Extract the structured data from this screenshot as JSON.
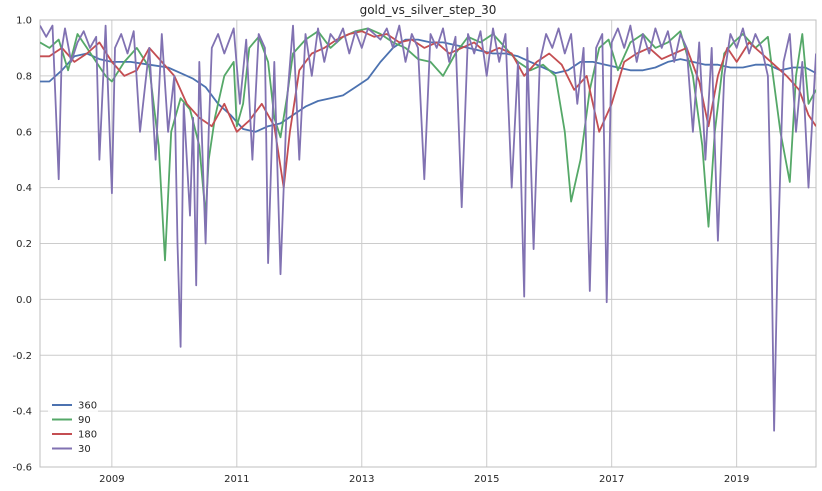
{
  "chart_data": {
    "type": "line",
    "title": "gold_vs_silver_step_30",
    "xlabel": "",
    "ylabel": "",
    "xlim": [
      2007.85,
      2020.27
    ],
    "ylim": [
      -0.6,
      1.0
    ],
    "grid": true,
    "legend_position": "bottom-left",
    "x_ticks": [
      2009,
      2011,
      2013,
      2015,
      2017,
      2019
    ],
    "x_tick_labels": [
      "2009",
      "2011",
      "2013",
      "2015",
      "2017",
      "2019"
    ],
    "y_ticks": [
      -0.6,
      -0.4,
      -0.2,
      0.0,
      0.2,
      0.4,
      0.6,
      0.8,
      1.0
    ],
    "y_tick_labels": [
      "-0.6",
      "-0.4",
      "-0.2",
      "0.0",
      "0.2",
      "0.4",
      "0.6",
      "0.8",
      "1.0"
    ],
    "colors": {
      "360": "#4c72b0",
      "90": "#55a868",
      "180": "#c44e52",
      "30": "#8172b2",
      "grid": "#cccccc",
      "frame": "#bfbfbf"
    },
    "series": [
      {
        "name": "360",
        "x": [
          2007.85,
          2008.0,
          2008.2,
          2008.4,
          2008.6,
          2008.8,
          2009.0,
          2009.3,
          2009.6,
          2009.9,
          2010.1,
          2010.3,
          2010.5,
          2010.7,
          2010.9,
          2011.1,
          2011.3,
          2011.5,
          2011.7,
          2011.9,
          2012.1,
          2012.3,
          2012.5,
          2012.7,
          2012.9,
          2013.1,
          2013.3,
          2013.5,
          2013.7,
          2013.9,
          2014.1,
          2014.3,
          2014.5,
          2014.7,
          2014.9,
          2015.1,
          2015.3,
          2015.5,
          2015.7,
          2015.9,
          2016.1,
          2016.3,
          2016.5,
          2016.7,
          2016.9,
          2017.1,
          2017.3,
          2017.5,
          2017.7,
          2017.9,
          2018.1,
          2018.3,
          2018.5,
          2018.7,
          2018.9,
          2019.1,
          2019.3,
          2019.5,
          2019.7,
          2019.9,
          2020.1,
          2020.27
        ],
        "y": [
          0.78,
          0.78,
          0.82,
          0.87,
          0.88,
          0.86,
          0.85,
          0.85,
          0.84,
          0.83,
          0.81,
          0.79,
          0.76,
          0.7,
          0.66,
          0.61,
          0.6,
          0.62,
          0.63,
          0.66,
          0.69,
          0.71,
          0.72,
          0.73,
          0.76,
          0.79,
          0.85,
          0.9,
          0.93,
          0.93,
          0.92,
          0.92,
          0.91,
          0.9,
          0.89,
          0.88,
          0.88,
          0.87,
          0.85,
          0.83,
          0.81,
          0.82,
          0.85,
          0.85,
          0.84,
          0.83,
          0.82,
          0.82,
          0.83,
          0.85,
          0.86,
          0.85,
          0.84,
          0.84,
          0.83,
          0.83,
          0.84,
          0.84,
          0.82,
          0.83,
          0.83,
          0.81
        ]
      },
      {
        "name": "90",
        "x": [
          2007.85,
          2008.0,
          2008.15,
          2008.3,
          2008.45,
          2008.6,
          2008.75,
          2008.9,
          2009.0,
          2009.2,
          2009.4,
          2009.6,
          2009.75,
          2009.85,
          2009.95,
          2010.1,
          2010.25,
          2010.4,
          2010.5,
          2010.55,
          2010.65,
          2010.8,
          2010.95,
          2011.0,
          2011.1,
          2011.2,
          2011.35,
          2011.5,
          2011.6,
          2011.7,
          2011.8,
          2011.9,
          2012.1,
          2012.3,
          2012.5,
          2012.7,
          2012.9,
          2013.1,
          2013.3,
          2013.5,
          2013.7,
          2013.9,
          2014.1,
          2014.3,
          2014.5,
          2014.7,
          2014.9,
          2015.1,
          2015.3,
          2015.5,
          2015.7,
          2015.9,
          2016.1,
          2016.25,
          2016.35,
          2016.5,
          2016.65,
          2016.8,
          2016.95,
          2017.1,
          2017.3,
          2017.5,
          2017.7,
          2017.9,
          2018.1,
          2018.3,
          2018.45,
          2018.55,
          2018.65,
          2018.8,
          2018.95,
          2019.1,
          2019.3,
          2019.5,
          2019.7,
          2019.85,
          2019.95,
          2020.05,
          2020.15,
          2020.27
        ],
        "y": [
          0.92,
          0.9,
          0.93,
          0.82,
          0.95,
          0.9,
          0.85,
          0.8,
          0.78,
          0.85,
          0.9,
          0.83,
          0.55,
          0.14,
          0.6,
          0.72,
          0.68,
          0.55,
          0.3,
          0.5,
          0.65,
          0.8,
          0.85,
          0.62,
          0.7,
          0.9,
          0.94,
          0.85,
          0.65,
          0.58,
          0.72,
          0.88,
          0.93,
          0.96,
          0.9,
          0.94,
          0.96,
          0.97,
          0.95,
          0.92,
          0.9,
          0.86,
          0.85,
          0.8,
          0.88,
          0.94,
          0.92,
          0.95,
          0.9,
          0.85,
          0.82,
          0.84,
          0.8,
          0.6,
          0.35,
          0.5,
          0.75,
          0.9,
          0.93,
          0.82,
          0.92,
          0.95,
          0.9,
          0.92,
          0.96,
          0.8,
          0.55,
          0.26,
          0.6,
          0.88,
          0.92,
          0.95,
          0.9,
          0.94,
          0.6,
          0.42,
          0.8,
          0.95,
          0.7,
          0.75
        ]
      },
      {
        "name": "180",
        "x": [
          2007.85,
          2008.0,
          2008.2,
          2008.4,
          2008.6,
          2008.8,
          2009.0,
          2009.2,
          2009.4,
          2009.6,
          2009.8,
          2010.0,
          2010.2,
          2010.4,
          2010.6,
          2010.8,
          2011.0,
          2011.2,
          2011.4,
          2011.6,
          2011.75,
          2011.85,
          2012.0,
          2012.2,
          2012.4,
          2012.6,
          2012.8,
          2013.0,
          2013.2,
          2013.4,
          2013.6,
          2013.8,
          2014.0,
          2014.2,
          2014.4,
          2014.6,
          2014.8,
          2015.0,
          2015.2,
          2015.4,
          2015.6,
          2015.8,
          2016.0,
          2016.2,
          2016.4,
          2016.6,
          2016.8,
          2017.0,
          2017.2,
          2017.4,
          2017.6,
          2017.8,
          2018.0,
          2018.2,
          2018.4,
          2018.55,
          2018.7,
          2018.85,
          2019.0,
          2019.2,
          2019.4,
          2019.6,
          2019.8,
          2020.0,
          2020.15,
          2020.27
        ],
        "y": [
          0.87,
          0.87,
          0.9,
          0.85,
          0.88,
          0.92,
          0.85,
          0.8,
          0.82,
          0.9,
          0.85,
          0.8,
          0.7,
          0.65,
          0.62,
          0.7,
          0.6,
          0.64,
          0.7,
          0.62,
          0.4,
          0.6,
          0.82,
          0.88,
          0.9,
          0.93,
          0.95,
          0.96,
          0.94,
          0.95,
          0.92,
          0.93,
          0.9,
          0.92,
          0.88,
          0.9,
          0.92,
          0.88,
          0.9,
          0.88,
          0.8,
          0.85,
          0.88,
          0.84,
          0.75,
          0.8,
          0.6,
          0.7,
          0.85,
          0.88,
          0.9,
          0.86,
          0.88,
          0.9,
          0.78,
          0.62,
          0.8,
          0.9,
          0.85,
          0.92,
          0.88,
          0.84,
          0.8,
          0.75,
          0.66,
          0.62
        ]
      },
      {
        "name": "30",
        "x": [
          2007.85,
          2007.95,
          2008.05,
          2008.15,
          2008.2,
          2008.25,
          2008.35,
          2008.45,
          2008.55,
          2008.65,
          2008.75,
          2008.8,
          2008.9,
          2009.0,
          2009.05,
          2009.15,
          2009.25,
          2009.35,
          2009.45,
          2009.6,
          2009.7,
          2009.8,
          2009.9,
          2010.0,
          2010.05,
          2010.1,
          2010.15,
          2010.25,
          2010.3,
          2010.35,
          2010.4,
          2010.5,
          2010.55,
          2010.6,
          2010.7,
          2010.8,
          2010.95,
          2011.05,
          2011.15,
          2011.25,
          2011.35,
          2011.45,
          2011.5,
          2011.6,
          2011.7,
          2011.8,
          2011.9,
          2012.0,
          2012.1,
          2012.2,
          2012.3,
          2012.4,
          2012.5,
          2012.6,
          2012.7,
          2012.8,
          2012.9,
          2013.0,
          2013.1,
          2013.2,
          2013.3,
          2013.4,
          2013.5,
          2013.6,
          2013.7,
          2013.8,
          2013.9,
          2014.0,
          2014.1,
          2014.2,
          2014.3,
          2014.4,
          2014.5,
          2014.6,
          2014.7,
          2014.8,
          2014.9,
          2015.0,
          2015.1,
          2015.2,
          2015.3,
          2015.4,
          2015.5,
          2015.6,
          2015.65,
          2015.75,
          2015.85,
          2015.95,
          2016.05,
          2016.15,
          2016.25,
          2016.35,
          2016.45,
          2016.55,
          2016.65,
          2016.75,
          2016.85,
          2016.92,
          2017.0,
          2017.1,
          2017.2,
          2017.3,
          2017.4,
          2017.5,
          2017.6,
          2017.7,
          2017.8,
          2017.9,
          2018.0,
          2018.1,
          2018.2,
          2018.3,
          2018.4,
          2018.5,
          2018.6,
          2018.7,
          2018.8,
          2018.9,
          2019.0,
          2019.1,
          2019.2,
          2019.3,
          2019.4,
          2019.5,
          2019.55,
          2019.6,
          2019.65,
          2019.75,
          2019.85,
          2019.95,
          2020.05,
          2020.15,
          2020.27
        ],
        "y": [
          0.98,
          0.94,
          0.98,
          0.43,
          0.9,
          0.97,
          0.85,
          0.92,
          0.96,
          0.9,
          0.94,
          0.5,
          0.98,
          0.38,
          0.9,
          0.95,
          0.88,
          0.96,
          0.6,
          0.9,
          0.5,
          0.95,
          0.6,
          0.8,
          0.2,
          -0.17,
          0.7,
          0.3,
          0.65,
          0.05,
          0.85,
          0.2,
          0.6,
          0.9,
          0.95,
          0.88,
          0.97,
          0.7,
          0.93,
          0.5,
          0.95,
          0.9,
          0.13,
          0.85,
          0.09,
          0.7,
          0.98,
          0.5,
          0.95,
          0.8,
          0.97,
          0.85,
          0.95,
          0.92,
          0.97,
          0.88,
          0.96,
          0.9,
          0.97,
          0.95,
          0.93,
          0.97,
          0.9,
          0.98,
          0.85,
          0.95,
          0.9,
          0.43,
          0.95,
          0.9,
          0.97,
          0.85,
          0.94,
          0.33,
          0.95,
          0.88,
          0.96,
          0.8,
          0.97,
          0.85,
          0.95,
          0.4,
          0.85,
          0.01,
          0.9,
          0.18,
          0.85,
          0.95,
          0.9,
          0.97,
          0.88,
          0.95,
          0.7,
          0.9,
          0.03,
          0.9,
          0.95,
          -0.01,
          0.92,
          0.97,
          0.9,
          0.98,
          0.85,
          0.95,
          0.88,
          0.97,
          0.9,
          0.96,
          0.85,
          0.95,
          0.9,
          0.6,
          0.92,
          0.5,
          0.9,
          0.21,
          0.8,
          0.95,
          0.9,
          0.97,
          0.88,
          0.95,
          0.9,
          0.8,
          0.3,
          -0.47,
          0.1,
          0.85,
          0.95,
          0.6,
          0.85,
          0.4,
          0.88
        ]
      }
    ]
  }
}
